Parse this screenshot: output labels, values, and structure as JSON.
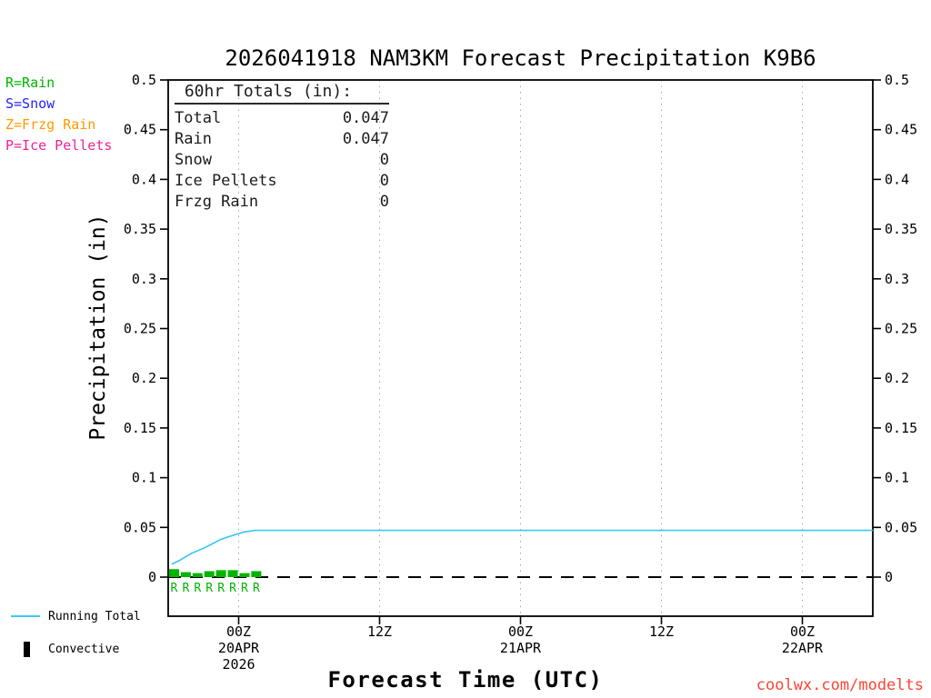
{
  "page": {
    "title": "2026041918 NAM3KM Forecast Precipitation K9B6",
    "x_axis_label": "Forecast Time (UTC)",
    "y_axis_label": "Precipitation (in)",
    "watermark": "coolwx.com/modelts"
  },
  "precip_type_legend": [
    {
      "code": "R",
      "label": "R=Rain",
      "color": "#00b400"
    },
    {
      "code": "S",
      "label": "S=Snow",
      "color": "#2222ff"
    },
    {
      "code": "Z",
      "label": "Z=Frzg Rain",
      "color": "#ff9900"
    },
    {
      "code": "P",
      "label": "P=Ice Pellets",
      "color": "#ee2299"
    }
  ],
  "totals_box": {
    "heading": " 60hr Totals (in):",
    "rows": [
      {
        "label": "Total",
        "value": "0.047"
      },
      {
        "label": "Rain",
        "value": "0.047"
      },
      {
        "label": "Snow",
        "value": "0"
      },
      {
        "label": "Ice Pellets",
        "value": "0"
      },
      {
        "label": "Frzg Rain",
        "value": "0"
      }
    ]
  },
  "series_legend": {
    "running_total": {
      "label": "Running Total",
      "color": "#3fc8f0"
    },
    "convective": {
      "label": "Convective",
      "color": "#000000"
    }
  },
  "chart_data": {
    "type": "line+bar",
    "title": "2026041918 NAM3KM Forecast Precipitation K9B6",
    "xlabel": "Forecast Time (UTC)",
    "ylabel": "Precipitation (in)",
    "ylim": [
      0,
      0.5
    ],
    "ytick_step": 0.05,
    "x_hours_range": [
      0,
      60
    ],
    "grid": "vertical-dotted",
    "zero_line": "dashed",
    "x_ticks": [
      {
        "hour": 6,
        "label": "00Z",
        "date": "20APR",
        "year": "2026"
      },
      {
        "hour": 18,
        "label": "12Z"
      },
      {
        "hour": 30,
        "label": "00Z",
        "date": "21APR"
      },
      {
        "hour": 42,
        "label": "12Z"
      },
      {
        "hour": 54,
        "label": "00Z",
        "date": "22APR"
      }
    ],
    "running_total": {
      "name": "Running Total",
      "color": "#3fc8f0",
      "points": [
        [
          0.3,
          0.013
        ],
        [
          1,
          0.017
        ],
        [
          2,
          0.024
        ],
        [
          3,
          0.029
        ],
        [
          3.5,
          0.032
        ],
        [
          4.5,
          0.038
        ],
        [
          5.5,
          0.042
        ],
        [
          6.5,
          0.0455
        ],
        [
          7.4,
          0.047
        ],
        [
          60,
          0.047
        ]
      ]
    },
    "rain_bars": {
      "name": "Rain (hourly, convective shown black)",
      "color": "#00b400",
      "hours": [
        0.5,
        1.5,
        2.5,
        3.5,
        4.5,
        5.5,
        6.5,
        7.5
      ],
      "values": [
        0.008,
        0.005,
        0.004,
        0.006,
        0.007,
        0.007,
        0.004,
        0.006
      ]
    },
    "precip_type_markers": {
      "letter": "R",
      "color": "#00b400",
      "hours": [
        0.5,
        1.5,
        2.5,
        3.5,
        4.5,
        5.5,
        6.5,
        7.5
      ]
    },
    "totals": {
      "total": 0.047,
      "rain": 0.047,
      "snow": 0,
      "ice_pellets": 0,
      "frzg_rain": 0
    }
  }
}
